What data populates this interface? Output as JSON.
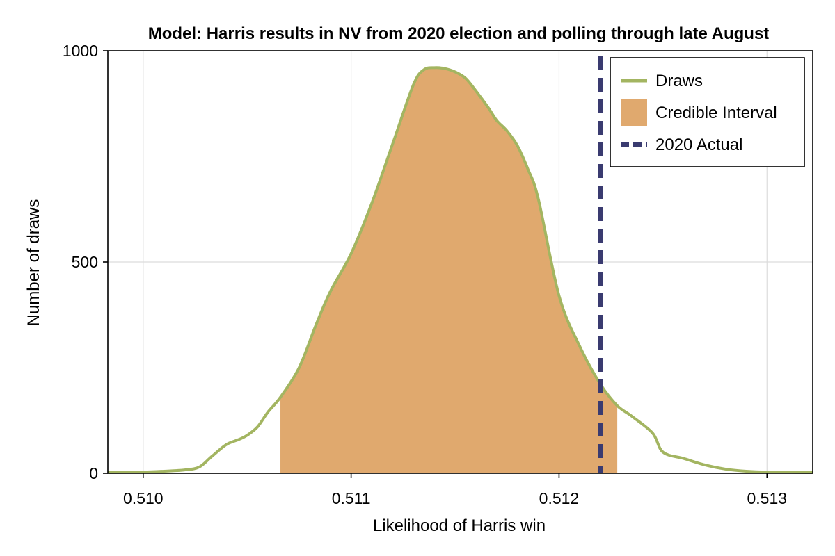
{
  "chart_data": {
    "type": "area",
    "title": "Model: Harris results in NV from 2020 election and polling through late August",
    "xlabel": "Likelihood of Harris win",
    "ylabel": "Number of draws",
    "xlim": [
      0.50983,
      0.51322
    ],
    "ylim": [
      0,
      1000
    ],
    "xticks": [
      0.51,
      0.511,
      0.512,
      0.513
    ],
    "xtick_labels": [
      "0.510",
      "0.511",
      "0.512",
      "0.513"
    ],
    "yticks": [
      0,
      500,
      1000
    ],
    "ytick_labels": [
      "0",
      "500",
      "1000"
    ],
    "grid": true,
    "legend_position": "top-right",
    "series": [
      {
        "name": "Draws",
        "kind": "density-line",
        "color": "#a3b561",
        "x": [
          0.50983,
          0.51,
          0.5101,
          0.5102,
          0.51027,
          0.51033,
          0.5104,
          0.51046,
          0.5105,
          0.51055,
          0.5106,
          0.51066,
          0.51075,
          0.51083,
          0.5109,
          0.511,
          0.5111,
          0.5112,
          0.5113,
          0.51135,
          0.5114,
          0.51145,
          0.5115,
          0.51155,
          0.5116,
          0.51166,
          0.5117,
          0.51175,
          0.5118,
          0.51185,
          0.5119,
          0.512,
          0.5121,
          0.5122,
          0.51228,
          0.51235,
          0.51245,
          0.5125,
          0.5126,
          0.5127,
          0.5128,
          0.5129,
          0.513,
          0.51322
        ],
        "values": [
          2,
          3,
          5,
          8,
          15,
          40,
          68,
          80,
          90,
          110,
          145,
          180,
          250,
          350,
          430,
          520,
          640,
          780,
          920,
          955,
          960,
          958,
          950,
          935,
          905,
          865,
          835,
          810,
          775,
          720,
          650,
          420,
          300,
          210,
          160,
          135,
          95,
          50,
          35,
          20,
          10,
          5,
          3,
          2
        ]
      },
      {
        "name": "Credible Interval",
        "kind": "shaded-interval",
        "color": "#e0a96e",
        "range": [
          0.51066,
          0.51228
        ]
      },
      {
        "name": "2020 Actual",
        "kind": "vertical-line",
        "color": "#3a3b70",
        "x": 0.5122
      }
    ]
  }
}
